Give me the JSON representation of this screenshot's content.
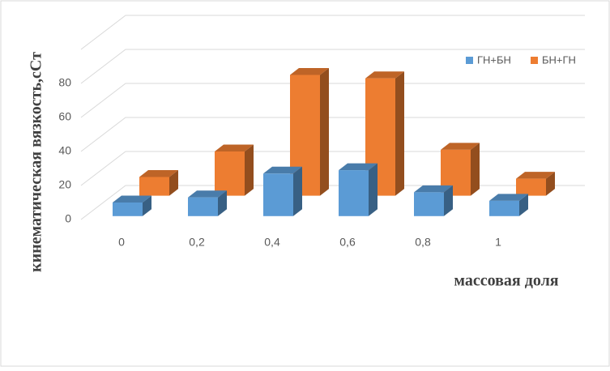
{
  "chart_data": {
    "type": "bar3d",
    "y_axis_label": "кинематическая  вязкость,сСт",
    "x_axis_label": "массовая доля",
    "categories": [
      "0",
      "0,2",
      "0,4",
      "0,6",
      "0,8",
      "1"
    ],
    "series": [
      {
        "name": "ГН+БН",
        "color": "#5b9bd5",
        "values": [
          8,
          11,
          25,
          27,
          14,
          9
        ]
      },
      {
        "name": "БН+ГН",
        "color": "#ed7d31",
        "values": [
          11,
          26,
          71,
          69,
          27,
          10
        ]
      }
    ],
    "ylim": [
      0,
      100
    ],
    "yticks": [
      0,
      20,
      40,
      60,
      80
    ],
    "grid": true,
    "legend": "top-right"
  }
}
